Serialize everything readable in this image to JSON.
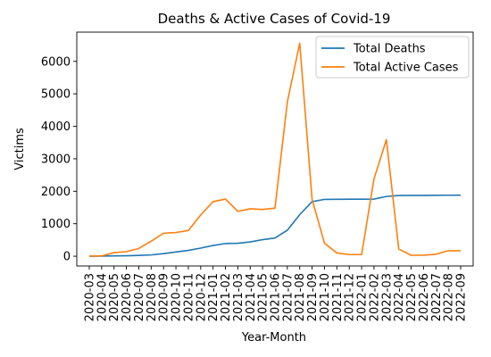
{
  "chart_data": {
    "type": "line",
    "title": "Deaths & Active Cases of Covid-19",
    "xlabel": "Year-Month",
    "ylabel": "Victims",
    "ylim": [
      -300,
      6900
    ],
    "yticks": [
      0,
      1000,
      2000,
      3000,
      4000,
      5000,
      6000
    ],
    "grid": false,
    "legend_position": "top-right",
    "x": [
      "2020-03",
      "2020-04",
      "2020-05",
      "2020-06",
      "2020-07",
      "2020-08",
      "2020-09",
      "2020-10",
      "2020-11",
      "2020-12",
      "2021-01",
      "2021-02",
      "2021-03",
      "2021-04",
      "2021-05",
      "2021-06",
      "2021-07",
      "2021-08",
      "2021-09",
      "2021-10",
      "2021-11",
      "2021-12",
      "2022-01",
      "2022-02",
      "2022-03",
      "2022-04",
      "2022-05",
      "2022-06",
      "2022-07",
      "2022-08",
      "2022-09"
    ],
    "series": [
      {
        "name": "Total Deaths",
        "color": "#1f77b4",
        "values": [
          0,
          5,
          10,
          15,
          25,
          40,
          80,
          130,
          180,
          250,
          330,
          390,
          400,
          440,
          510,
          560,
          800,
          1280,
          1680,
          1750,
          1752,
          1755,
          1755,
          1760,
          1840,
          1870,
          1872,
          1874,
          1876,
          1878,
          1880
        ]
      },
      {
        "name": "Total Active Cases",
        "color": "#ff7f0e",
        "values": [
          5,
          10,
          110,
          140,
          240,
          460,
          710,
          730,
          790,
          1270,
          1680,
          1760,
          1380,
          1460,
          1440,
          1480,
          4750,
          6560,
          1750,
          400,
          100,
          50,
          50,
          2380,
          3590,
          220,
          30,
          30,
          60,
          170,
          170
        ]
      }
    ]
  }
}
